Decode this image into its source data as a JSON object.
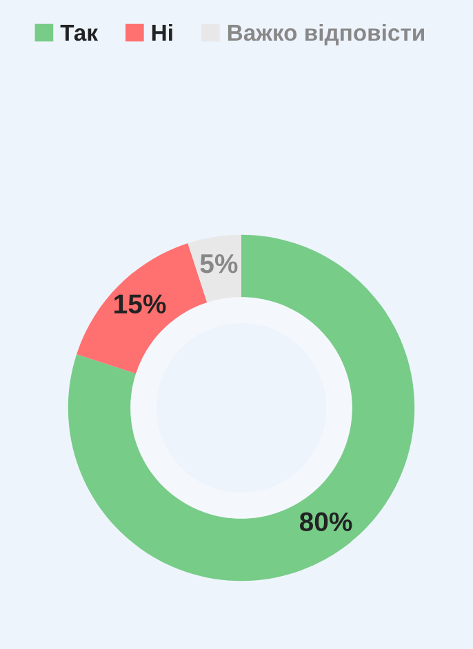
{
  "chart_data": {
    "type": "donut",
    "categories": [
      "Так",
      "Ні",
      "Важко відповісти"
    ],
    "values": [
      80,
      15,
      5
    ],
    "colors": [
      "#77cc88",
      "#ff7070",
      "#e8e8e8"
    ],
    "value_labels": [
      "80%",
      "15%",
      "5%"
    ],
    "legend": "top left"
  }
}
